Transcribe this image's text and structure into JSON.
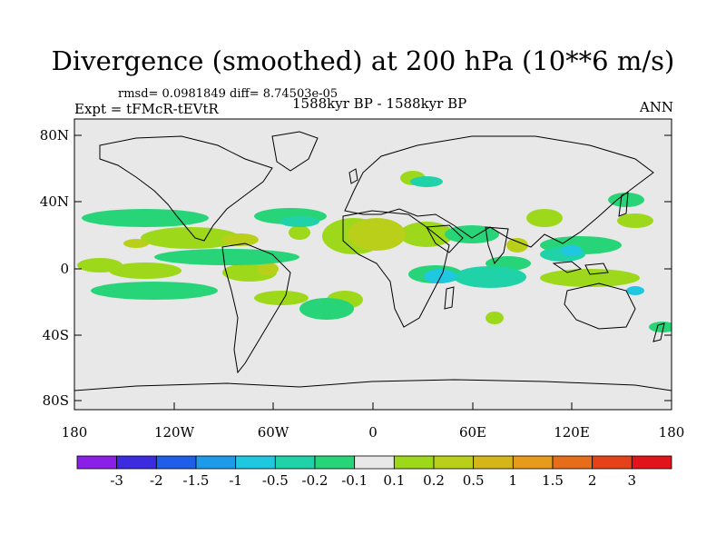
{
  "title": "Divergence (smoothed) at 200 hPa (10**6 m/s)",
  "stats": "rmsd= 0.0981849 diff= 8.74503e-05",
  "experiment": "Expt = tFMcR-tEVtR",
  "period": "1588kyr BP - 1588kyr BP",
  "season": "ANN",
  "lat_labels": [
    "80N",
    "40N",
    "0",
    "40S",
    "80S"
  ],
  "lon_labels": [
    "180",
    "120W",
    "60W",
    "0",
    "60E",
    "120E",
    "180"
  ],
  "colorbar": {
    "colors": [
      "#8a1fe6",
      "#3d2be0",
      "#1f5ee6",
      "#1e9be8",
      "#1fc7e0",
      "#1fd2a8",
      "#28d478",
      "#e8e8e8",
      "#9ed81a",
      "#b9cf1a",
      "#d4b61a",
      "#e69b1a",
      "#e66e1a",
      "#e6421a",
      "#e0141a"
    ],
    "labels": [
      "-3",
      "-2",
      "-1.5",
      "-1",
      "-0.5",
      "-0.2",
      "-0.1",
      "0.1",
      "0.2",
      "0.5",
      "1",
      "1.5",
      "2",
      "3"
    ]
  },
  "fields": [
    {
      "name": "pos-0.1-0.2",
      "color": "#9ed81a"
    },
    {
      "name": "pos-0.2-0.5",
      "color": "#b9cf1a"
    },
    {
      "name": "neg-0.1-0.2",
      "color": "#28d478"
    },
    {
      "name": "neg-0.2-0.5",
      "color": "#1fd2a8"
    },
    {
      "name": "neg-0.5-1",
      "color": "#1fc7e0"
    }
  ]
}
